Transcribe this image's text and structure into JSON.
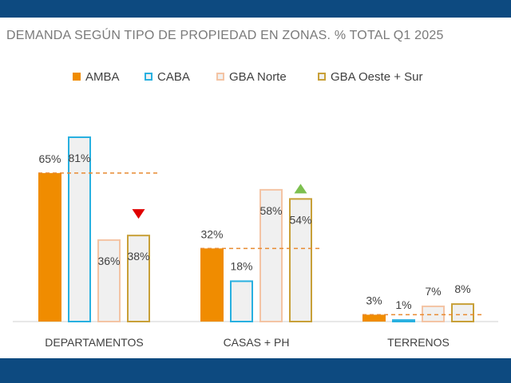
{
  "title": "DEMANDA SEGÚN TIPO DE PROPIEDAD EN ZONAS. % TOTAL Q1 2025",
  "colors": {
    "header_band": "#0d4a80",
    "amba": "#f08c00",
    "caba": "#28b0e0",
    "gba_norte": "#f4c4a4",
    "gba_oeste_sur": "#c8a038",
    "hollow_fill": "#f0f0f0",
    "reference_line": "#e88a30",
    "marker_down": "#e00000",
    "marker_up": "#7dc050"
  },
  "chart_data": {
    "type": "bar",
    "title": "DEMANDA SEGÚN TIPO DE PROPIEDAD EN ZONAS. % TOTAL Q1 2025",
    "categories": [
      "DEPARTAMENTOS",
      "CASAS + PH",
      "TERRENOS"
    ],
    "series": [
      {
        "name": "AMBA",
        "values": [
          65,
          32,
          3
        ],
        "labels": [
          "65%",
          "32%",
          "3%"
        ]
      },
      {
        "name": "CABA",
        "values": [
          81,
          18,
          1
        ],
        "labels": [
          "81%",
          "18%",
          "1%"
        ]
      },
      {
        "name": "GBA Norte",
        "values": [
          36,
          58,
          7
        ],
        "labels": [
          "36%",
          "58%",
          "7%"
        ]
      },
      {
        "name": "GBA Oeste + Sur",
        "values": [
          38,
          54,
          8
        ],
        "labels": [
          "38%",
          "54%",
          "8%"
        ]
      }
    ],
    "reference_lines": [
      65,
      32,
      3
    ],
    "markers": [
      {
        "category": "DEPARTAMENTOS",
        "series": "GBA Oeste + Sur",
        "direction": "down"
      },
      {
        "category": "CASAS + PH",
        "series": "GBA Oeste + Sur",
        "direction": "up"
      }
    ],
    "ylim": [
      0,
      81
    ],
    "grid": false,
    "legend_position": "top"
  }
}
